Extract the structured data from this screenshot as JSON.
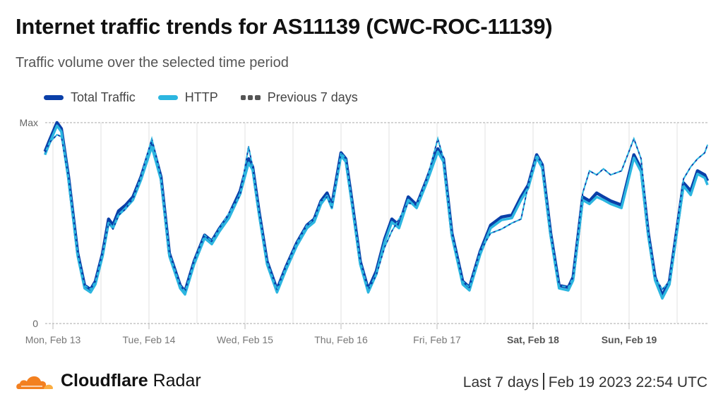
{
  "header": {
    "title": "Internet traffic trends for AS11139 (CWC-ROC-11139)",
    "subtitle": "Traffic volume over the selected time period"
  },
  "footer": {
    "brand_bold": "Cloudflare",
    "brand_light": "Radar",
    "range": "Last 7 days",
    "timestamp": "Feb 19 2023 22:54 UTC"
  },
  "colors": {
    "total": "#0a3fa8",
    "http": "#2cb6e0",
    "previous": "#555555",
    "accent": "#f38020"
  },
  "chart_data": {
    "type": "line",
    "title": "Internet traffic trends for AS11139 (CWC-ROC-11139)",
    "ylabel": "",
    "xlabel": "",
    "y_tick_labels": [
      "0",
      "Max"
    ],
    "ylim": [
      0,
      100
    ],
    "x_unit": "hours since Mon, Feb 13 00:00 UTC",
    "xlim": [
      -2,
      163.6
    ],
    "x_tick_labels": [
      "Mon, Feb 13",
      "Tue, Feb 14",
      "Wed, Feb 15",
      "Thu, Feb 16",
      "Fri, Feb 17",
      "Sat, Feb 18",
      "Sun, Feb 19"
    ],
    "legend": [
      "Total Traffic",
      "HTTP",
      "Previous 7 days"
    ],
    "legend_position": "top-left",
    "x": [
      -2,
      -0.9,
      1,
      2.1,
      3.9,
      6.2,
      7.9,
      9.4,
      10.6,
      12.4,
      13.9,
      15,
      16.4,
      18.2,
      19.1,
      20,
      22,
      24.7,
      27,
      29.1,
      31.8,
      33,
      35.3,
      37.9,
      39.7,
      41.5,
      44,
      46.8,
      48.9,
      49.9,
      51.5,
      53.5,
      56,
      58.2,
      60.9,
      63.5,
      65.3,
      67,
      68.5,
      69.7,
      72,
      73.2,
      74.6,
      76.8,
      78.8,
      80.8,
      82.9,
      84.7,
      86.5,
      88.8,
      90.9,
      93.5,
      96.2,
      97.6,
      99.7,
      102.4,
      104.1,
      106.8,
      109.4,
      112.1,
      114.7,
      117,
      118.8,
      120.9,
      122.3,
      124.4,
      126.5,
      128.8,
      130,
      132.4,
      134.1,
      135.9,
      137.6,
      139.4,
      142.1,
      145.2,
      147,
      148.8,
      150.5,
      152.3,
      154.1,
      155.8,
      157.6,
      159.4,
      161.1,
      162.9,
      163.6
    ],
    "series": [
      {
        "name": "Total Traffic",
        "values": [
          85.6,
          91,
          100,
          97,
          73,
          35,
          19,
          17,
          21,
          35,
          52,
          49,
          56,
          59,
          61,
          63,
          73,
          90,
          73,
          35,
          19,
          16,
          31,
          44,
          41,
          47,
          54,
          66,
          82,
          78,
          56,
          31,
          17,
          28,
          40,
          49,
          52,
          61,
          65,
          59,
          85,
          82,
          63,
          31,
          17,
          26,
          42,
          52,
          49,
          63,
          59,
          72,
          87,
          82,
          45,
          21,
          18,
          36,
          49,
          53,
          54,
          63,
          69,
          84,
          79,
          45,
          19,
          18,
          23,
          63,
          61,
          65,
          63,
          61,
          59,
          84,
          77,
          45,
          23,
          14,
          21,
          45,
          70,
          66,
          76,
          74,
          71
        ]
      },
      {
        "name": "HTTP",
        "values": [
          84,
          89.5,
          98.5,
          95.5,
          71.5,
          33.5,
          17.5,
          15.5,
          19.5,
          33.5,
          50,
          47.5,
          54,
          57.5,
          59.5,
          61.5,
          71.5,
          88,
          71.5,
          33.5,
          17.5,
          14.5,
          29.5,
          42.5,
          39.5,
          45.5,
          52.5,
          64.5,
          80,
          76.5,
          54.5,
          29.5,
          15.5,
          26.5,
          38.5,
          47.5,
          50.5,
          59.5,
          63.5,
          57.5,
          83.5,
          80.5,
          61.5,
          29.5,
          15.5,
          24.5,
          40.5,
          50.5,
          47.5,
          61.5,
          57.5,
          70.5,
          85.5,
          80.5,
          43.5,
          19.5,
          16.5,
          34.5,
          47.5,
          51.5,
          52.5,
          61.5,
          67.5,
          82.5,
          77.5,
          43.5,
          17.5,
          16.5,
          21.5,
          61.5,
          59.5,
          63,
          61.5,
          59.5,
          57.5,
          82.5,
          75.5,
          43.5,
          21.5,
          12.5,
          19.5,
          43.5,
          68.5,
          64,
          74.5,
          72.5,
          69
        ]
      },
      {
        "name": "Previous 7 days",
        "values": [
          85,
          90,
          94,
          93,
          73,
          35,
          19,
          17,
          21,
          35,
          50,
          47,
          54,
          57,
          60,
          62,
          73,
          92,
          73,
          35,
          19,
          16,
          31,
          44,
          41,
          47,
          55,
          64,
          88,
          78,
          56,
          31,
          17,
          28,
          40,
          49,
          52,
          61,
          63,
          58,
          85,
          82,
          63,
          31,
          17,
          24,
          38,
          46,
          52,
          60,
          59,
          72,
          92,
          82,
          45,
          21,
          18,
          36,
          45,
          47,
          50,
          52,
          69,
          84,
          79,
          45,
          19,
          18,
          23,
          65,
          76,
          74,
          77,
          74,
          76,
          92,
          82,
          45,
          23,
          17,
          21,
          46,
          72,
          78,
          82,
          85,
          89
        ]
      }
    ]
  }
}
